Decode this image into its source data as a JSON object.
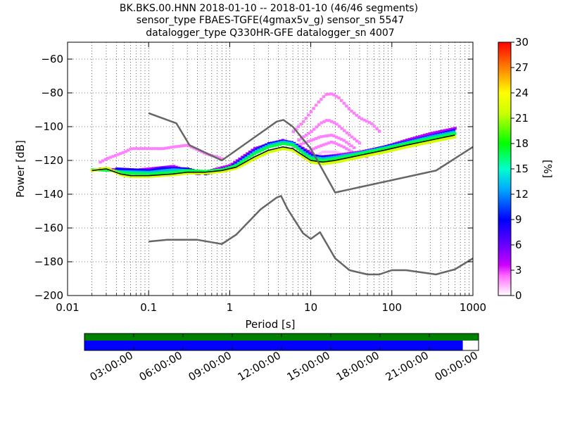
{
  "chart_data": {
    "type": "heatmap",
    "title_lines": [
      "BK.BKS.00.HNN   2018-01-10 -- 2018-01-10  (46/46 segments)",
      "sensor_type FBAES-TGFE(4gmax5v_g) sensor_sn 5547",
      "datalogger_type Q330HR-GFE datalogger_sn 4007"
    ],
    "xlabel": "Period [s]",
    "ylabel": "Power [dB]",
    "x_scale": "log",
    "xlim": [
      0.01,
      1000
    ],
    "ylim": [
      -200,
      -50
    ],
    "x_ticks": [
      {
        "value": 0.01,
        "label": "0.01"
      },
      {
        "value": 0.1,
        "label": "0.1"
      },
      {
        "value": 1,
        "label": "1"
      },
      {
        "value": 10,
        "label": "10"
      },
      {
        "value": 100,
        "label": "100"
      },
      {
        "value": 1000,
        "label": "1000"
      }
    ],
    "y_ticks": [
      {
        "value": -60,
        "label": "−60"
      },
      {
        "value": -80,
        "label": "−80"
      },
      {
        "value": -100,
        "label": "−100"
      },
      {
        "value": -120,
        "label": "−120"
      },
      {
        "value": -140,
        "label": "−140"
      },
      {
        "value": -160,
        "label": "−160"
      },
      {
        "value": -180,
        "label": "−180"
      },
      {
        "value": -200,
        "label": "−200"
      }
    ],
    "grid": "dotted",
    "colorbar": {
      "label": "[%]",
      "range": [
        0,
        30
      ],
      "ticks": [
        {
          "value": 0,
          "label": "0"
        },
        {
          "value": 3,
          "label": "3"
        },
        {
          "value": 6,
          "label": "6"
        },
        {
          "value": 9,
          "label": "9"
        },
        {
          "value": 12,
          "label": "12"
        },
        {
          "value": 15,
          "label": "15"
        },
        {
          "value": 18,
          "label": "18"
        },
        {
          "value": 21,
          "label": "21"
        },
        {
          "value": 24,
          "label": "24"
        },
        {
          "value": 27,
          "label": "27"
        },
        {
          "value": 30,
          "label": "30"
        }
      ]
    },
    "noise_model_high": {
      "color": "#666666",
      "points": [
        [
          0.1,
          -92
        ],
        [
          0.22,
          -98
        ],
        [
          0.32,
          -111
        ],
        [
          0.8,
          -120
        ],
        [
          3.8,
          -97
        ],
        [
          4.6,
          -96
        ],
        [
          6,
          -100
        ],
        [
          10,
          -113
        ],
        [
          20,
          -139
        ],
        [
          350,
          -126
        ],
        [
          1000,
          -112
        ]
      ]
    },
    "noise_model_low": {
      "color": "#666666",
      "points": [
        [
          0.1,
          -168
        ],
        [
          0.17,
          -167
        ],
        [
          0.4,
          -167
        ],
        [
          0.8,
          -169.5
        ],
        [
          1.2,
          -164
        ],
        [
          2.4,
          -149
        ],
        [
          3.8,
          -142
        ],
        [
          4.3,
          -141
        ],
        [
          5.2,
          -149
        ],
        [
          8,
          -163
        ],
        [
          10,
          -166.5
        ],
        [
          13,
          -162.5
        ],
        [
          20,
          -178
        ],
        [
          30,
          -185
        ],
        [
          50,
          -187.5
        ],
        [
          70,
          -187.5
        ],
        [
          100,
          -185
        ],
        [
          150,
          -185
        ],
        [
          350,
          -187.5
        ],
        [
          600,
          -184.5
        ],
        [
          1000,
          -178
        ]
      ]
    },
    "mode_line": {
      "color": "#000000",
      "points": [
        [
          0.02,
          -126
        ],
        [
          0.03,
          -125
        ],
        [
          0.045,
          -128
        ],
        [
          0.06,
          -129
        ],
        [
          0.1,
          -129
        ],
        [
          0.2,
          -128
        ],
        [
          0.3,
          -127
        ],
        [
          0.5,
          -127
        ],
        [
          0.8,
          -126
        ],
        [
          1.2,
          -124
        ],
        [
          2,
          -118
        ],
        [
          3,
          -114
        ],
        [
          4.5,
          -112
        ],
        [
          6,
          -113
        ],
        [
          8,
          -117
        ],
        [
          10,
          -120
        ],
        [
          14,
          -121
        ],
        [
          20,
          -120
        ],
        [
          40,
          -117
        ],
        [
          80,
          -114
        ],
        [
          150,
          -111
        ],
        [
          300,
          -108
        ],
        [
          600,
          -105
        ]
      ]
    },
    "psd_curves": [
      {
        "percent": 22,
        "points": [
          [
            0.02,
            -126
          ],
          [
            0.03,
            -124.5
          ],
          [
            0.045,
            -128.5
          ],
          [
            0.06,
            -129.5
          ],
          [
            0.1,
            -129.5
          ],
          [
            0.2,
            -128.5
          ],
          [
            0.3,
            -127.5
          ],
          [
            0.5,
            -127.5
          ],
          [
            0.8,
            -126.5
          ],
          [
            1.2,
            -124.5
          ],
          [
            2,
            -119
          ],
          [
            3,
            -115
          ],
          [
            4.5,
            -113
          ],
          [
            6,
            -114
          ],
          [
            8,
            -118
          ],
          [
            10,
            -121
          ],
          [
            14,
            -122
          ],
          [
            20,
            -121
          ],
          [
            40,
            -118
          ],
          [
            80,
            -115
          ],
          [
            150,
            -112
          ],
          [
            300,
            -109
          ],
          [
            600,
            -106
          ]
        ]
      },
      {
        "percent": 17,
        "points": [
          [
            0.02,
            -125.5
          ],
          [
            0.035,
            -126
          ],
          [
            0.05,
            -127.5
          ],
          [
            0.1,
            -128
          ],
          [
            0.2,
            -127
          ],
          [
            0.3,
            -126
          ],
          [
            0.5,
            -126.5
          ],
          [
            0.8,
            -125.5
          ],
          [
            1.2,
            -123
          ],
          [
            2,
            -116
          ],
          [
            3,
            -112
          ],
          [
            4.5,
            -110
          ],
          [
            6,
            -111
          ],
          [
            8,
            -116
          ],
          [
            10,
            -119
          ],
          [
            14,
            -120
          ],
          [
            20,
            -119
          ],
          [
            40,
            -116
          ],
          [
            80,
            -113
          ],
          [
            150,
            -110
          ],
          [
            300,
            -107
          ],
          [
            600,
            -104
          ]
        ]
      },
      {
        "percent": 13,
        "points": [
          [
            0.04,
            -126.5
          ],
          [
            0.1,
            -127
          ],
          [
            0.2,
            -125.5
          ],
          [
            0.3,
            -126
          ],
          [
            0.5,
            -127.5
          ],
          [
            1,
            -125
          ],
          [
            2,
            -115
          ],
          [
            3,
            -111
          ],
          [
            4.5,
            -109
          ],
          [
            6,
            -110
          ],
          [
            8,
            -115
          ],
          [
            10,
            -118
          ],
          [
            14,
            -119
          ],
          [
            20,
            -118
          ],
          [
            40,
            -115.5
          ],
          [
            80,
            -112.5
          ],
          [
            150,
            -109.5
          ],
          [
            300,
            -106
          ],
          [
            600,
            -103
          ]
        ]
      },
      {
        "percent": 8,
        "points": [
          [
            0.04,
            -125
          ],
          [
            0.1,
            -126
          ],
          [
            0.15,
            -124.5
          ],
          [
            0.3,
            -125
          ],
          [
            0.5,
            -128
          ],
          [
            1,
            -124
          ],
          [
            2,
            -114
          ],
          [
            3,
            -110
          ],
          [
            4.5,
            -108.5
          ],
          [
            6,
            -109.5
          ],
          [
            10,
            -117
          ],
          [
            14,
            -118
          ],
          [
            30,
            -117
          ],
          [
            80,
            -112
          ],
          [
            150,
            -109
          ],
          [
            300,
            -105.5
          ],
          [
            600,
            -102
          ]
        ]
      },
      {
        "percent": 4,
        "points": [
          [
            0.025,
            -125
          ],
          [
            0.06,
            -126
          ],
          [
            0.1,
            -125
          ],
          [
            0.2,
            -123.5
          ],
          [
            0.4,
            -128
          ],
          [
            1,
            -123
          ],
          [
            2,
            -113
          ],
          [
            4.5,
            -108
          ],
          [
            8,
            -113
          ],
          [
            12,
            -118
          ],
          [
            20,
            -117
          ],
          [
            40,
            -115
          ],
          [
            80,
            -112
          ],
          [
            150,
            -108
          ],
          [
            300,
            -104
          ],
          [
            600,
            -101
          ]
        ]
      },
      {
        "percent": 2,
        "points": [
          [
            0.025,
            -121
          ],
          [
            0.03,
            -119
          ],
          [
            0.05,
            -115
          ],
          [
            0.06,
            -113
          ],
          [
            0.1,
            -113
          ],
          [
            0.15,
            -113
          ],
          [
            0.2,
            -112
          ],
          [
            0.3,
            -111
          ],
          [
            0.5,
            -116
          ],
          [
            0.8,
            -119
          ]
        ]
      },
      {
        "percent": 2,
        "points": [
          [
            6,
            -103
          ],
          [
            8,
            -97
          ],
          [
            10,
            -91
          ],
          [
            12,
            -86
          ],
          [
            15,
            -81
          ],
          [
            18,
            -80.5
          ],
          [
            22,
            -83
          ],
          [
            30,
            -90
          ],
          [
            40,
            -95
          ],
          [
            55,
            -98
          ],
          [
            70,
            -103
          ]
        ]
      },
      {
        "percent": 2,
        "points": [
          [
            7,
            -108
          ],
          [
            10,
            -103
          ],
          [
            13,
            -98
          ],
          [
            16,
            -96
          ],
          [
            20,
            -98
          ],
          [
            28,
            -104
          ],
          [
            40,
            -110
          ]
        ]
      },
      {
        "percent": 2,
        "points": [
          [
            6,
            -112
          ],
          [
            9,
            -109
          ],
          [
            13,
            -106
          ],
          [
            18,
            -105
          ],
          [
            25,
            -108
          ],
          [
            35,
            -113
          ]
        ]
      },
      {
        "percent": 2,
        "points": [
          [
            8,
            -116
          ],
          [
            12,
            -112
          ],
          [
            18,
            -109
          ],
          [
            25,
            -112
          ],
          [
            35,
            -116
          ],
          [
            50,
            -118
          ]
        ]
      },
      {
        "percent": 1,
        "points": [
          [
            9,
            -120
          ],
          [
            14,
            -115
          ],
          [
            20,
            -115
          ],
          [
            30,
            -118
          ]
        ]
      }
    ],
    "time_coverage": {
      "start": "00:00:00",
      "end": "00:00:00",
      "data_fraction_top": 1.0,
      "data_fraction_bottom": 0.96,
      "top_color": "#008000",
      "bottom_color": "#0000ff",
      "tick_labels": [
        "03:00:00",
        "06:00:00",
        "09:00:00",
        "12:00:00",
        "15:00:00",
        "18:00:00",
        "21:00:00",
        "00:00:00"
      ]
    }
  }
}
